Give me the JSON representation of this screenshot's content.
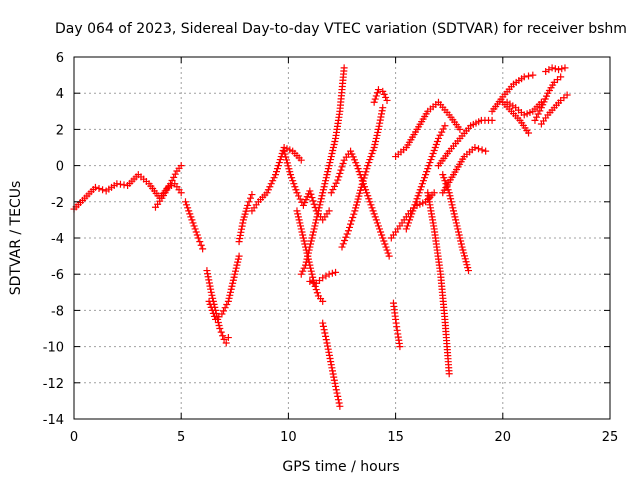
{
  "chart_data": {
    "type": "scatter",
    "title": "Day 064 of 2023, Sidereal Day-to-day VTEC variation (SDTVAR) for receiver bshm",
    "xlabel": "GPS time / hours",
    "ylabel": "SDTVAR / TECUs",
    "xlim": [
      0,
      25
    ],
    "ylim": [
      -14,
      6
    ],
    "xticks": [
      0,
      5,
      10,
      15,
      20,
      25
    ],
    "yticks": [
      -14,
      -12,
      -10,
      -8,
      -6,
      -4,
      -2,
      0,
      2,
      4,
      6
    ],
    "grid": true,
    "marker": "plus",
    "colors": {
      "series": "#ff0000",
      "grid": "#a0a0a0",
      "axes": "#000000"
    },
    "series": [
      {
        "x": [
          0.0,
          0.5,
          1.0,
          1.5,
          2.0,
          2.5,
          3.0,
          3.5,
          4.0,
          4.5,
          4.8,
          5.0
        ],
        "y": [
          -2.4,
          -1.8,
          -1.2,
          -1.4,
          -1.0,
          -1.1,
          -0.5,
          -1.0,
          -1.8,
          -1.0,
          -0.3,
          0.0
        ]
      },
      {
        "x": [
          3.8,
          4.1,
          4.4,
          4.7,
          5.0
        ],
        "y": [
          -2.3,
          -1.8,
          -1.2,
          -1.0,
          -1.5
        ]
      },
      {
        "x": [
          5.2,
          5.5,
          5.8,
          6.0
        ],
        "y": [
          -2.0,
          -3.0,
          -4.0,
          -4.6
        ]
      },
      {
        "x": [
          6.2,
          6.4,
          6.6,
          6.8,
          7.0,
          7.1,
          7.2
        ],
        "y": [
          -5.8,
          -7.0,
          -8.0,
          -9.0,
          -9.6,
          -9.8,
          -9.5
        ]
      },
      {
        "x": [
          6.3,
          6.6,
          6.9,
          7.2,
          7.5,
          7.7
        ],
        "y": [
          -7.5,
          -8.5,
          -8.2,
          -7.5,
          -6.0,
          -5.0
        ]
      },
      {
        "x": [
          7.7,
          7.9,
          8.1,
          8.3
        ],
        "y": [
          -4.2,
          -3.0,
          -2.2,
          -1.6
        ]
      },
      {
        "x": [
          8.3,
          8.6,
          9.0,
          9.4,
          9.8,
          10.2,
          10.6
        ],
        "y": [
          -2.5,
          -2.0,
          -1.5,
          -0.5,
          1.0,
          0.8,
          0.3
        ]
      },
      {
        "x": [
          9.8,
          10.1,
          10.4,
          10.7,
          11.0,
          11.3,
          11.6,
          11.9
        ],
        "y": [
          0.8,
          -0.5,
          -1.5,
          -2.2,
          -1.4,
          -2.5,
          -3.0,
          -2.5
        ]
      },
      {
        "x": [
          10.4,
          10.6,
          10.8,
          11.0,
          11.2,
          11.4,
          11.6
        ],
        "y": [
          -2.5,
          -3.5,
          -4.5,
          -5.5,
          -6.5,
          -7.2,
          -7.5
        ]
      },
      {
        "x": [
          10.6,
          10.8,
          11.0,
          11.2,
          11.4,
          11.6,
          11.8,
          12.0,
          12.2,
          12.4,
          12.6
        ],
        "y": [
          -6.0,
          -5.5,
          -4.5,
          -3.5,
          -2.5,
          -1.5,
          -0.5,
          0.5,
          1.5,
          3.0,
          5.4
        ]
      },
      {
        "x": [
          11.6,
          11.8,
          12.0,
          12.2,
          12.4
        ],
        "y": [
          -8.7,
          -9.8,
          -11.0,
          -12.2,
          -13.3
        ]
      },
      {
        "x": [
          11.0,
          11.3,
          11.6,
          11.9,
          12.2
        ],
        "y": [
          -6.4,
          -6.5,
          -6.2,
          -6.0,
          -5.9
        ]
      },
      {
        "x": [
          12.5,
          12.8,
          13.1,
          13.4,
          13.7,
          14.0,
          14.2,
          14.4
        ],
        "y": [
          -4.5,
          -3.6,
          -2.5,
          -1.2,
          0.0,
          1.0,
          2.0,
          3.2
        ]
      },
      {
        "x": [
          12.0,
          12.3,
          12.6,
          12.9,
          13.2,
          13.5,
          13.8,
          14.1,
          14.4,
          14.7
        ],
        "y": [
          -1.5,
          -0.8,
          0.3,
          0.8,
          0.0,
          -1.0,
          -2.0,
          -3.0,
          -4.0,
          -5.0
        ]
      },
      {
        "x": [
          14.0,
          14.2,
          14.4,
          14.6
        ],
        "y": [
          3.5,
          4.2,
          4.1,
          3.6
        ]
      },
      {
        "x": [
          14.8,
          15.1,
          15.4,
          15.7,
          16.0,
          16.4,
          16.8
        ],
        "y": [
          -4.0,
          -3.5,
          -3.0,
          -2.5,
          -2.2,
          -2.0,
          -1.5
        ]
      },
      {
        "x": [
          14.9,
          15.0,
          15.1,
          15.2
        ],
        "y": [
          -7.6,
          -8.5,
          -9.3,
          -10.0
        ]
      },
      {
        "x": [
          15.0,
          15.5,
          16.0,
          16.5,
          17.0,
          17.5,
          18.0
        ],
        "y": [
          0.5,
          1.0,
          2.0,
          3.0,
          3.5,
          2.8,
          2.0
        ]
      },
      {
        "x": [
          15.5,
          15.8,
          16.1,
          16.4,
          16.7,
          17.0,
          17.3
        ],
        "y": [
          -3.5,
          -2.5,
          -1.5,
          -0.5,
          0.5,
          1.5,
          2.2
        ]
      },
      {
        "x": [
          16.5,
          16.8,
          17.1,
          17.3,
          17.5
        ],
        "y": [
          -1.5,
          -3.5,
          -6.0,
          -8.5,
          -11.5
        ]
      },
      {
        "x": [
          17.2,
          17.5,
          17.8,
          18.1,
          18.4
        ],
        "y": [
          -0.5,
          -1.5,
          -3.0,
          -4.5,
          -5.8
        ]
      },
      {
        "x": [
          17.0,
          17.5,
          18.0,
          18.5,
          19.0,
          19.5
        ],
        "y": [
          0.0,
          0.8,
          1.5,
          2.2,
          2.5,
          2.5
        ]
      },
      {
        "x": [
          17.2,
          17.7,
          18.2,
          18.7,
          19.2
        ],
        "y": [
          -1.5,
          -0.5,
          0.5,
          1.0,
          0.8
        ]
      },
      {
        "x": [
          19.5,
          20.0,
          20.5,
          21.0,
          21.4
        ],
        "y": [
          3.0,
          3.8,
          4.5,
          4.9,
          5.0
        ]
      },
      {
        "x": [
          20.0,
          20.4,
          20.8,
          21.2
        ],
        "y": [
          3.5,
          3.0,
          2.5,
          1.8
        ]
      },
      {
        "x": [
          20.2,
          20.6,
          21.0,
          21.4,
          21.8
        ],
        "y": [
          3.5,
          3.2,
          2.8,
          3.0,
          3.5
        ]
      },
      {
        "x": [
          21.5,
          21.8,
          22.1,
          22.4,
          22.7
        ],
        "y": [
          2.5,
          3.2,
          4.0,
          4.6,
          4.9
        ]
      },
      {
        "x": [
          21.8,
          22.1,
          22.4,
          22.7,
          23.0
        ],
        "y": [
          2.3,
          2.8,
          3.2,
          3.6,
          3.9
        ]
      },
      {
        "x": [
          22.0,
          22.3,
          22.6,
          22.9
        ],
        "y": [
          5.2,
          5.4,
          5.3,
          5.4
        ]
      }
    ]
  }
}
